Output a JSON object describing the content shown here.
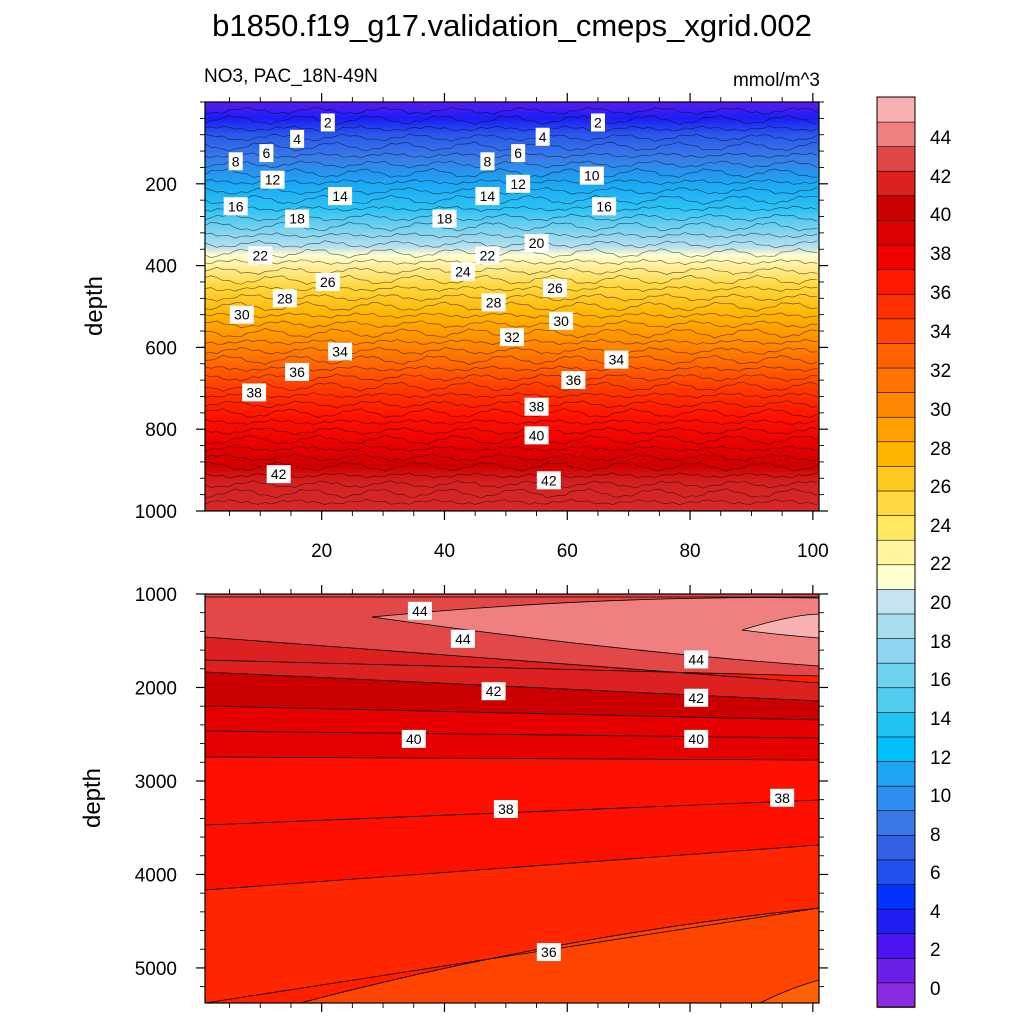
{
  "chart_data": {
    "type": "contour",
    "title": "b1850.f19_g17.validation_cmeps_xgrid.002",
    "variable_label": "NO3, PAC_18N-49N",
    "units_label": "mmol/m^3",
    "x_tick_labels": [
      "20",
      "40",
      "60",
      "80",
      "100"
    ],
    "x_ticks": [
      20,
      40,
      60,
      80,
      100
    ],
    "xlim": [
      1,
      101
    ],
    "colorbar": {
      "tick_labels": [
        "0",
        "2",
        "4",
        "6",
        "8",
        "10",
        "12",
        "14",
        "16",
        "18",
        "20",
        "22",
        "24",
        "26",
        "28",
        "30",
        "32",
        "34",
        "36",
        "38",
        "40",
        "42",
        "44"
      ],
      "levels": [
        0,
        2,
        4,
        6,
        8,
        10,
        12,
        14,
        16,
        18,
        20,
        22,
        24,
        26,
        28,
        30,
        32,
        34,
        36,
        38,
        40,
        42,
        44
      ],
      "colors": [
        "#8a2be2",
        "#6a1ee8",
        "#4b14f0",
        "#1f1ff5",
        "#0033ff",
        "#2050f0",
        "#3460e8",
        "#3a78e8",
        "#2f8ff0",
        "#1ea6f2",
        "#00bfff",
        "#20c4f4",
        "#52cdf0",
        "#6fd3f0",
        "#8fd7f0",
        "#a8dcee",
        "#c2e3ef",
        "#ffffd0",
        "#fff5a0",
        "#ffe860",
        "#ffd840",
        "#ffc820",
        "#ffb400",
        "#ffa000",
        "#ff8800",
        "#ff7400",
        "#ff6000",
        "#ff4800",
        "#ff3000",
        "#ff1800",
        "#f00000",
        "#dd0000",
        "#cc0000",
        "#dd2020",
        "#e04848",
        "#f08080",
        "#f8b0b0"
      ]
    },
    "panels": [
      {
        "name": "upper",
        "ylabel": "depth",
        "ylim": [
          0,
          1000
        ],
        "y_ticks": [
          200,
          400,
          600,
          800,
          1000
        ],
        "y_tick_labels": [
          "200",
          "400",
          "600",
          "800",
          "1000"
        ],
        "show_x_tick_labels": true,
        "contour_labels": [
          {
            "text": "2",
            "x": 21,
            "y": 50
          },
          {
            "text": "2",
            "x": 65,
            "y": 50
          },
          {
            "text": "4",
            "x": 16,
            "y": 90
          },
          {
            "text": "4",
            "x": 56,
            "y": 85
          },
          {
            "text": "6",
            "x": 11,
            "y": 125
          },
          {
            "text": "6",
            "x": 52,
            "y": 125
          },
          {
            "text": "8",
            "x": 6,
            "y": 145
          },
          {
            "text": "8",
            "x": 47,
            "y": 145
          },
          {
            "text": "10",
            "x": 64,
            "y": 180
          },
          {
            "text": "12",
            "x": 12,
            "y": 190
          },
          {
            "text": "12",
            "x": 52,
            "y": 200
          },
          {
            "text": "14",
            "x": 23,
            "y": 230
          },
          {
            "text": "14",
            "x": 47,
            "y": 230
          },
          {
            "text": "16",
            "x": 6,
            "y": 255
          },
          {
            "text": "16",
            "x": 66,
            "y": 255
          },
          {
            "text": "18",
            "x": 16,
            "y": 285
          },
          {
            "text": "18",
            "x": 40,
            "y": 285
          },
          {
            "text": "20",
            "x": 55,
            "y": 345
          },
          {
            "text": "22",
            "x": 10,
            "y": 375
          },
          {
            "text": "22",
            "x": 47,
            "y": 375
          },
          {
            "text": "24",
            "x": 43,
            "y": 415
          },
          {
            "text": "26",
            "x": 21,
            "y": 440
          },
          {
            "text": "26",
            "x": 58,
            "y": 455
          },
          {
            "text": "28",
            "x": 14,
            "y": 480
          },
          {
            "text": "28",
            "x": 48,
            "y": 490
          },
          {
            "text": "30",
            "x": 7,
            "y": 520
          },
          {
            "text": "30",
            "x": 59,
            "y": 535
          },
          {
            "text": "32",
            "x": 51,
            "y": 575
          },
          {
            "text": "34",
            "x": 23,
            "y": 610
          },
          {
            "text": "34",
            "x": 68,
            "y": 630
          },
          {
            "text": "36",
            "x": 16,
            "y": 660
          },
          {
            "text": "36",
            "x": 61,
            "y": 680
          },
          {
            "text": "38",
            "x": 9,
            "y": 710
          },
          {
            "text": "38",
            "x": 55,
            "y": 745
          },
          {
            "text": "40",
            "x": 55,
            "y": 815
          },
          {
            "text": "42",
            "x": 13,
            "y": 910
          },
          {
            "text": "42",
            "x": 57,
            "y": 925
          }
        ]
      },
      {
        "name": "lower",
        "ylabel": "depth",
        "ylim": [
          1000,
          5375
        ],
        "y_ticks": [
          1000,
          2000,
          3000,
          4000,
          5000
        ],
        "y_tick_labels": [
          "1000",
          "2000",
          "3000",
          "4000",
          "5000"
        ],
        "show_x_tick_labels": false,
        "contour_labels": [
          {
            "text": "44",
            "x": 36,
            "y": 1180
          },
          {
            "text": "44",
            "x": 43,
            "y": 1480
          },
          {
            "text": "44",
            "x": 81,
            "y": 1700
          },
          {
            "text": "42",
            "x": 48,
            "y": 2040
          },
          {
            "text": "42",
            "x": 81,
            "y": 2110
          },
          {
            "text": "40",
            "x": 35,
            "y": 2550
          },
          {
            "text": "40",
            "x": 81,
            "y": 2550
          },
          {
            "text": "38",
            "x": 50,
            "y": 3300
          },
          {
            "text": "38",
            "x": 95,
            "y": 3180
          },
          {
            "text": "36",
            "x": 57,
            "y": 4830
          }
        ]
      }
    ]
  }
}
